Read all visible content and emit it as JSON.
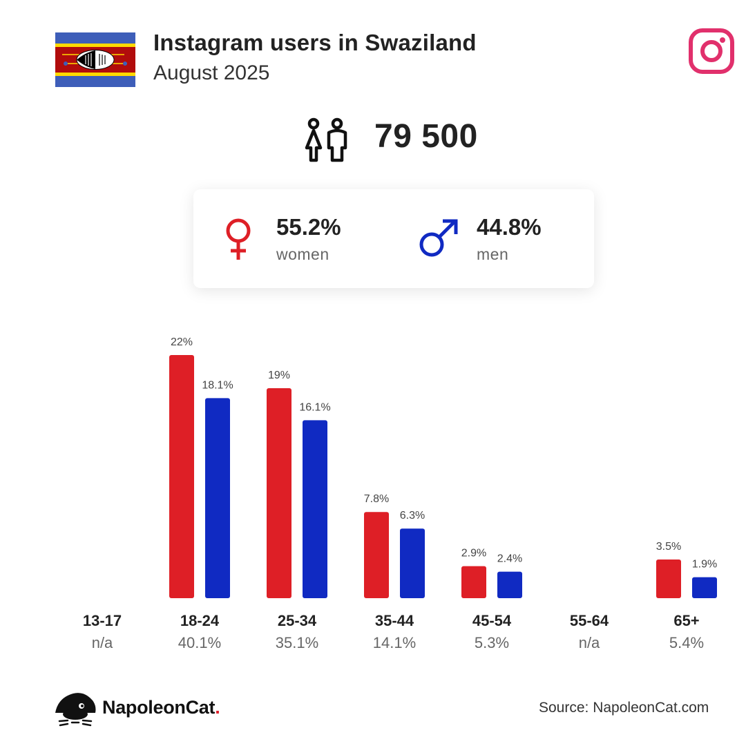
{
  "header": {
    "title": "Instagram users in Swaziland",
    "subtitle": "August 2025"
  },
  "summary": {
    "total_users": "79 500",
    "women": {
      "pct": "55.2%",
      "label": "women"
    },
    "men": {
      "pct": "44.8%",
      "label": "men"
    }
  },
  "colors": {
    "women": "#de1f26",
    "men": "#102ac2",
    "instagram": "#e1306c",
    "text": "#222222"
  },
  "icons": {
    "flag": "swaziland-flag-icon",
    "brand": "instagram-icon",
    "people": "people-icon",
    "female": "female-symbol-icon",
    "male": "male-symbol-icon",
    "logo": "napoleoncat-logo-icon"
  },
  "chart_data": {
    "type": "bar",
    "categories": [
      "13-17",
      "18-24",
      "25-34",
      "35-44",
      "45-54",
      "55-64",
      "65+"
    ],
    "group_share_labels": [
      "n/a",
      "40.1%",
      "35.1%",
      "14.1%",
      "5.3%",
      "n/a",
      "5.4%"
    ],
    "series": [
      {
        "name": "women",
        "values": [
          null,
          22,
          19,
          7.8,
          2.9,
          null,
          3.5
        ],
        "labels": [
          "",
          "22%",
          "19%",
          "7.8%",
          "2.9%",
          "",
          "3.5%"
        ]
      },
      {
        "name": "men",
        "values": [
          null,
          18.1,
          16.1,
          6.3,
          2.4,
          null,
          1.9
        ],
        "labels": [
          "",
          "18.1%",
          "16.1%",
          "6.3%",
          "2.4%",
          "",
          "1.9%"
        ]
      }
    ],
    "ylim": [
      0,
      22
    ],
    "title": "",
    "xlabel": "",
    "ylabel": ""
  },
  "footer": {
    "brand_name": "NapoleonCat",
    "brand_dot": ".",
    "source": "Source: NapoleonCat.com"
  }
}
